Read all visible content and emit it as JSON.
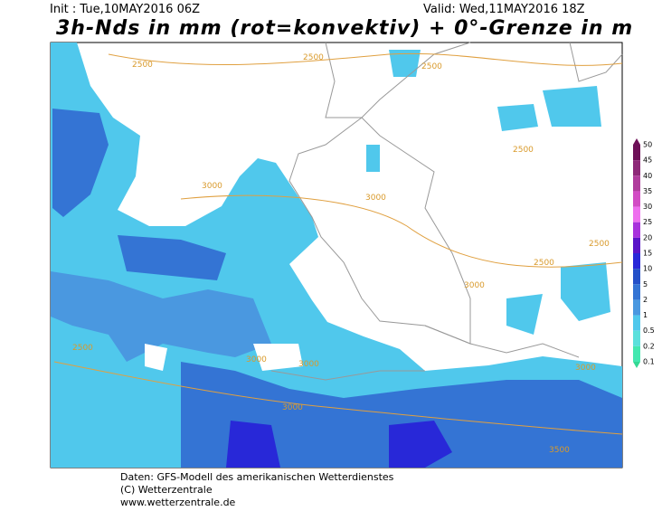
{
  "header": {
    "init": "Init : Tue,10MAY2016 06Z",
    "valid": "Valid: Wed,11MAY2016 18Z",
    "title": "3h-Nds in mm (rot=konvektiv) + 0°-Grenze in m"
  },
  "legend": {
    "levels": [
      50,
      45,
      40,
      35,
      30,
      25,
      20,
      15,
      10,
      5,
      2,
      1,
      0.5,
      0.2,
      0.1
    ],
    "colors": [
      "#6e1058",
      "#8e2878",
      "#b03c9c",
      "#d24cc4",
      "#ee70ee",
      "#a832dc",
      "#5a14c8",
      "#2828d8",
      "#2450c8",
      "#3474d4",
      "#4a98e0",
      "#50c8ec",
      "#5ce0dc",
      "#44e8b0",
      "#34d894"
    ]
  },
  "contour_labels": [
    "2500",
    "2500",
    "2500",
    "2500",
    "2500",
    "3000",
    "3000",
    "3000",
    "3000",
    "3000",
    "3000",
    "2500",
    "3500",
    "2500",
    "3000"
  ],
  "footer": {
    "line1": "Daten: GFS-Modell des amerikanischen Wetterdienstes",
    "line2": "(C) Wetterzentrale",
    "line3": "www.wetterzentrale.de"
  }
}
